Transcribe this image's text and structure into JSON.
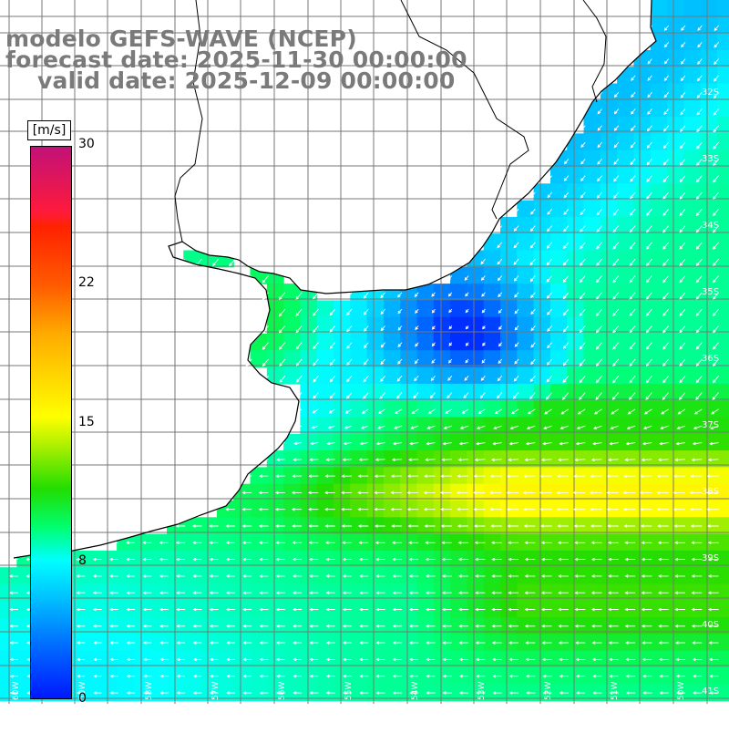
{
  "title": {
    "line1": "modelo GEFS-WAVE (NCEP)",
    "line2": "forecast date: 2025-11-30 00:00:00",
    "line3": "valid date: 2025-12-09 00:00:00"
  },
  "colorbar": {
    "unit": "[m/s]",
    "ticks": [
      "30",
      "22",
      "15",
      "8",
      "0"
    ],
    "colors": [
      "#c21178",
      "#ff2200",
      "#ffab00",
      "#ffff00",
      "#22dd00",
      "#00ffff",
      "#0070ff",
      "#0018ff"
    ]
  },
  "map": {
    "lat_labels": [
      "32S",
      "33S",
      "34S",
      "35S",
      "36S",
      "37S",
      "38S",
      "39S",
      "40S",
      "41S"
    ],
    "lon_labels": [
      "60W",
      "59W",
      "58W",
      "57W",
      "56W",
      "55W",
      "54W",
      "53W",
      "52W",
      "51W",
      "50W"
    ],
    "land_color": "#ffffff",
    "grid_color": "#777777",
    "coast_color": "#000000"
  }
}
